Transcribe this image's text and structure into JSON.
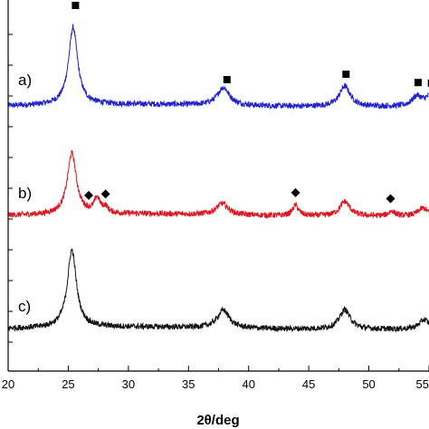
{
  "chart_data": {
    "type": "line",
    "title": "",
    "xlabel": "2θ/deg",
    "ylabel": "",
    "xlim": [
      20,
      55
    ],
    "x_ticks": [
      "20",
      "25",
      "30",
      "35",
      "40",
      "45",
      "50",
      "55"
    ],
    "grid": false,
    "legend": "none",
    "series": [
      {
        "name": "a)",
        "color": "#1f1fd6",
        "offset": 2,
        "peaks": [
          {
            "x": 25.4,
            "height": 0.95,
            "width": 0.45
          },
          {
            "x": 37.9,
            "height": 0.22,
            "width": 0.6
          },
          {
            "x": 48.0,
            "height": 0.25,
            "width": 0.55
          },
          {
            "x": 54.0,
            "height": 0.12,
            "width": 0.5
          },
          {
            "x": 55.1,
            "height": 0.12,
            "width": 0.5
          }
        ],
        "markers": {
          "symbol": "square",
          "x": [
            25.6,
            38.2,
            48.1,
            54.1,
            55.2
          ]
        }
      },
      {
        "name": "b)",
        "color": "#e0141e",
        "offset": 1,
        "peaks": [
          {
            "x": 25.3,
            "height": 0.75,
            "width": 0.45
          },
          {
            "x": 27.4,
            "height": 0.18,
            "width": 0.3
          },
          {
            "x": 28.1,
            "height": 0.07,
            "width": 0.25
          },
          {
            "x": 37.8,
            "height": 0.14,
            "width": 0.6
          },
          {
            "x": 43.9,
            "height": 0.13,
            "width": 0.3
          },
          {
            "x": 48.0,
            "height": 0.18,
            "width": 0.5
          },
          {
            "x": 51.9,
            "height": 0.06,
            "width": 0.3
          },
          {
            "x": 54.5,
            "height": 0.1,
            "width": 0.5
          }
        ],
        "markers": {
          "symbol": "diamond",
          "x": [
            26.7,
            28.1,
            43.9,
            51.8
          ]
        }
      },
      {
        "name": "c)",
        "color": "#111111",
        "offset": 0,
        "peaks": [
          {
            "x": 25.3,
            "height": 0.95,
            "width": 0.45
          },
          {
            "x": 37.9,
            "height": 0.22,
            "width": 0.6
          },
          {
            "x": 48.0,
            "height": 0.24,
            "width": 0.55
          },
          {
            "x": 54.6,
            "height": 0.12,
            "width": 0.5
          }
        ],
        "markers": {
          "symbol": "none",
          "x": []
        }
      }
    ]
  }
}
